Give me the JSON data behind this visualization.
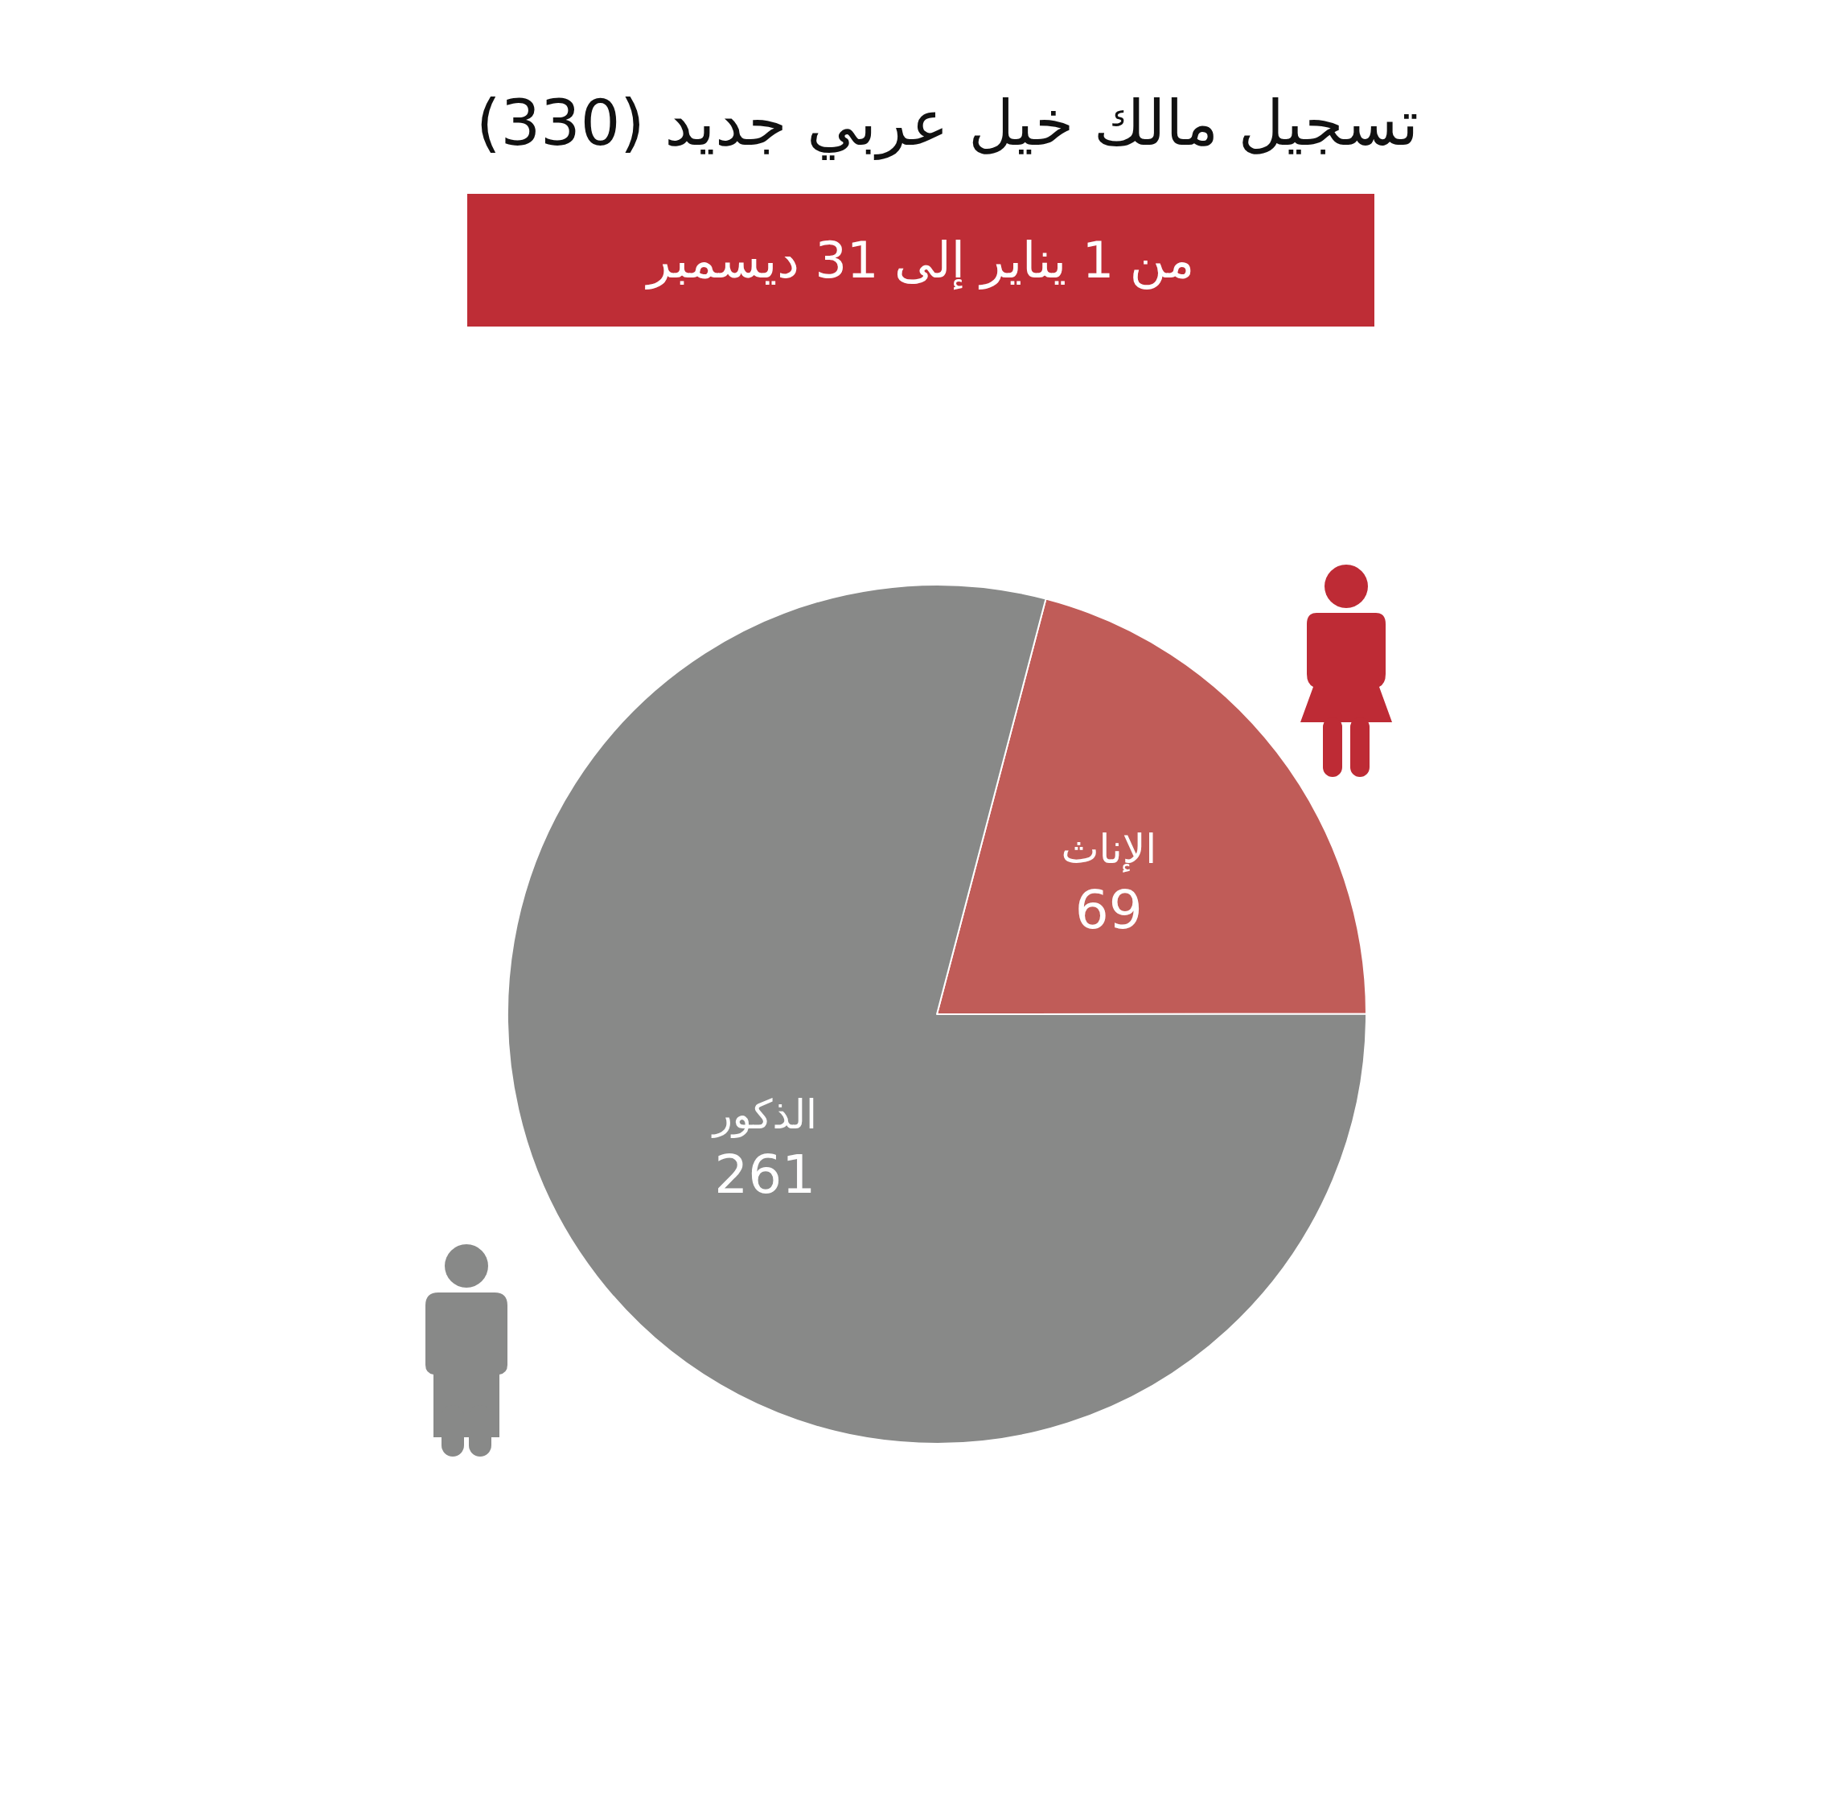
{
  "chart_data": {
    "type": "pie",
    "title": "تسجيل مالك خيل عربي جديد (330)",
    "subtitle": "من 1 يناير إلى 31 ديسمبر",
    "categories": [
      "الإناث",
      "الذكور"
    ],
    "values": [
      69,
      261
    ],
    "colors": [
      "#c05c58",
      "#888988"
    ],
    "data_labels": true
  }
}
